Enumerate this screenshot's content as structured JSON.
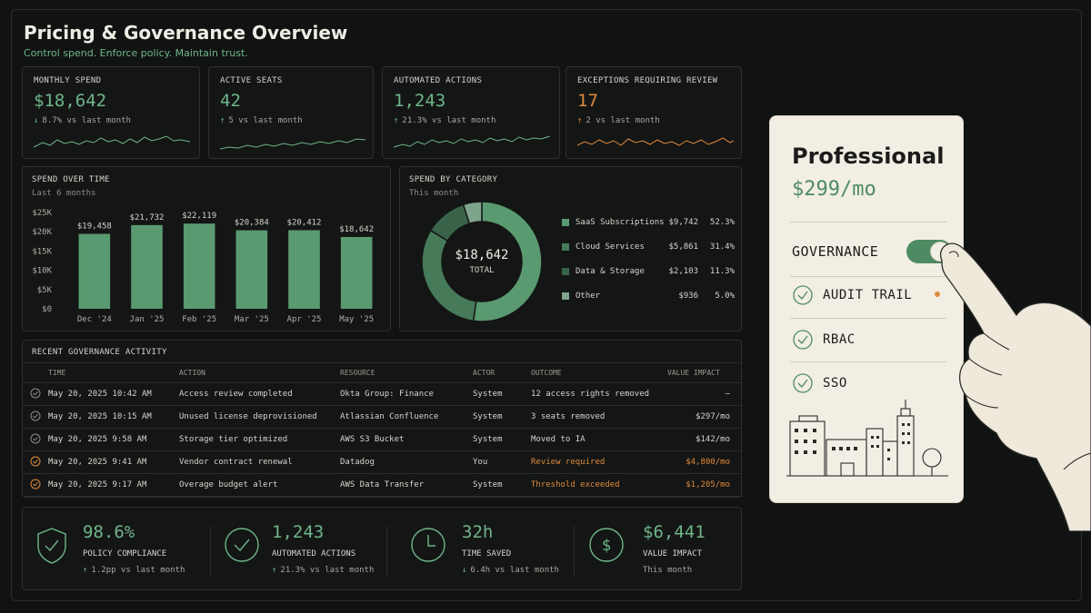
{
  "header": {
    "title": "Pricing & Governance Overview",
    "subtitle": "Control spend. Enforce policy. Maintain trust."
  },
  "kpis": [
    {
      "label": "MONTHLY SPEND",
      "value": "$18,642",
      "arrow": "↓",
      "trend": "8.7% vs last month",
      "color": "#6fb58a"
    },
    {
      "label": "ACTIVE SEATS",
      "value": "42",
      "arrow": "↑",
      "trend": "5 vs last month",
      "color": "#6fb58a"
    },
    {
      "label": "AUTOMATED ACTIONS",
      "value": "1,243",
      "arrow": "↑",
      "trend": "21.3% vs last month",
      "color": "#6fb58a"
    },
    {
      "label": "EXCEPTIONS REQUIRING REVIEW",
      "value": "17",
      "arrow": "↑",
      "trend": "2 vs last month",
      "color": "#e08a3c"
    }
  ],
  "spend_over_time": {
    "title": "SPEND OVER TIME",
    "subtitle": "Last 6 months"
  },
  "spend_by_category": {
    "title": "SPEND BY CATEGORY",
    "subtitle": "This month",
    "center_value": "$18,642",
    "center_label": "TOTAL",
    "items": [
      {
        "name": "SaaS Subscriptions",
        "amount": "$9,742",
        "pct": "52.3%"
      },
      {
        "name": "Cloud Services",
        "amount": "$5,861",
        "pct": "31.4%"
      },
      {
        "name": "Data & Storage",
        "amount": "$2,103",
        "pct": "11.3%"
      },
      {
        "name": "Other",
        "amount": "$936",
        "pct": "5.0%"
      }
    ]
  },
  "chart_data": [
    {
      "type": "bar",
      "title": "SPEND OVER TIME",
      "subtitle": "Last 6 months",
      "categories": [
        "Dec '24",
        "Jan '25",
        "Feb '25",
        "Mar '25",
        "Apr '25",
        "May '25"
      ],
      "values": [
        19458,
        21732,
        22119,
        20384,
        20412,
        18642
      ],
      "value_labels": [
        "$19,458",
        "$21,732",
        "$22,119",
        "$20,384",
        "$20,412",
        "$18,642"
      ],
      "yticks": [
        "$0",
        "$5K",
        "$10K",
        "$15K",
        "$20K",
        "$25K"
      ],
      "ylim": [
        0,
        25000
      ],
      "color": "#5a9a70"
    },
    {
      "type": "pie",
      "title": "SPEND BY CATEGORY",
      "labels": [
        "SaaS Subscriptions",
        "Cloud Services",
        "Data & Storage",
        "Other"
      ],
      "values": [
        9742,
        5861,
        2103,
        936
      ],
      "colors": [
        "#5a9a70",
        "#467a58",
        "#3a6449",
        "#7fa48c"
      ]
    }
  ],
  "activity": {
    "title": "RECENT GOVERNANCE ACTIVITY",
    "columns": [
      "TIME",
      "ACTION",
      "RESOURCE",
      "ACTOR",
      "OUTCOME",
      "VALUE IMPACT"
    ],
    "rows": [
      {
        "status": "ok",
        "time": "May 20, 2025 10:42 AM",
        "action": "Access review completed",
        "resource": "Okta Group: Finance",
        "actor": "System",
        "outcome": "12 access rights removed",
        "impact": "–"
      },
      {
        "status": "ok",
        "time": "May 20, 2025 10:15 AM",
        "action": "Unused license deprovisioned",
        "resource": "Atlassian Confluence",
        "actor": "System",
        "outcome": "3 seats removed",
        "impact": "$297/mo"
      },
      {
        "status": "ok",
        "time": "May 20, 2025 9:58 AM",
        "action": "Storage tier optimized",
        "resource": "AWS S3 Bucket",
        "actor": "System",
        "outcome": "Moved to IA",
        "impact": "$142/mo"
      },
      {
        "status": "warn",
        "time": "May 20, 2025  9:41 AM",
        "action": "Vendor contract renewal",
        "resource": "Datadog",
        "actor": "You",
        "outcome": "Review required",
        "impact": "$4,800/mo"
      },
      {
        "status": "warn",
        "time": "May 20, 2025  9:17 AM",
        "action": "Overage budget alert",
        "resource": "AWS Data Transfer",
        "actor": "System",
        "outcome": "Threshold exceeded",
        "impact": "$1,205/mo"
      }
    ]
  },
  "summary": [
    {
      "icon": "shield-check-icon",
      "value": "98.6%",
      "label": "POLICY COMPLIANCE",
      "arrow": "↑",
      "trend": "1.2pp vs last month"
    },
    {
      "icon": "check-circle-icon",
      "value": "1,243",
      "label": "AUTOMATED ACTIONS",
      "arrow": "↑",
      "trend": "21.3% vs last month"
    },
    {
      "icon": "clock-icon",
      "value": "32h",
      "label": "TIME SAVED",
      "arrow": "↓",
      "trend": "6.4h vs last month"
    },
    {
      "icon": "dollar-circle-icon",
      "value": "$6,441",
      "label": "VALUE IMPACT",
      "arrow": "",
      "trend": "This month"
    }
  ],
  "plan": {
    "name": "Professional",
    "price": "$299/mo",
    "governance_label": "GOVERNANCE",
    "governance_enabled": true,
    "features": [
      "AUDIT TRAIL",
      "RBAC",
      "SSO"
    ]
  }
}
